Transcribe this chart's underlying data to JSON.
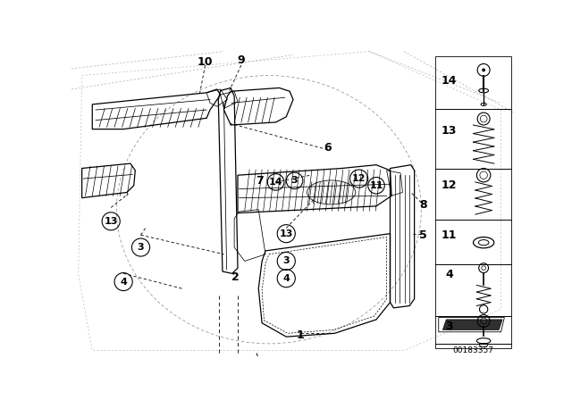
{
  "bg_color": "#ffffff",
  "diagram_id": "00183357",
  "fig_w": 6.4,
  "fig_h": 4.48,
  "dpi": 100
}
